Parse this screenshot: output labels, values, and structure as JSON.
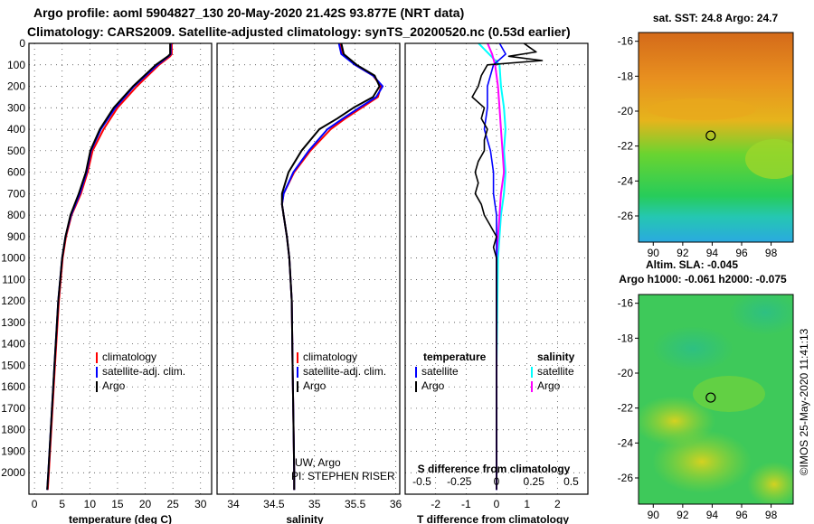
{
  "title_line1": "Argo profile: aoml 5904827_130 20-May-2020 21.42S 93.877E (NRT data)",
  "title_line2": "Climatology: CARS2009. Satellite-adjusted climatology: synTS_20200520.nc (0.53d earlier)",
  "credit": "©IMOS 25-May-2020 11:41:13",
  "colors": {
    "climatology": "#ff0000",
    "satellite": "#0000ff",
    "argo": "#000000",
    "satellite_s": "#00ffff",
    "argo_s": "#ff00ff"
  },
  "chart_data": [
    {
      "type": "line",
      "name": "temperature-profile",
      "xlabel": "temperature (deg C)",
      "ylabel": "depth",
      "xlim": [
        -1,
        32
      ],
      "ylim": [
        2100,
        0
      ],
      "x_ticks": [
        "0",
        "5",
        "10",
        "15",
        "20",
        "25",
        "30"
      ],
      "y_ticks": [
        "0",
        "100",
        "200",
        "300",
        "400",
        "500",
        "600",
        "700",
        "800",
        "900",
        "1000",
        "1100",
        "1200",
        "1300",
        "1400",
        "1500",
        "1600",
        "1700",
        "1800",
        "1900",
        "2000"
      ],
      "legend": [
        "climatology",
        "satellite-adj. clim.",
        "Argo"
      ],
      "series": [
        {
          "name": "climatology",
          "depth": [
            0,
            50,
            60,
            100,
            200,
            300,
            400,
            500,
            600,
            700,
            800,
            900,
            1000,
            1200,
            1500,
            2000,
            2080
          ],
          "values": [
            24.8,
            24.8,
            24.5,
            22.5,
            18.5,
            15.0,
            12.5,
            10.5,
            9.6,
            8.4,
            6.7,
            5.7,
            5.1,
            4.4,
            3.7,
            2.6,
            2.4
          ]
        },
        {
          "name": "satellite-adj. clim.",
          "depth": [
            0,
            50,
            60,
            100,
            200,
            300,
            400,
            500,
            600,
            700,
            800,
            900,
            1000,
            1200,
            1500,
            2000,
            2080
          ],
          "values": [
            24.6,
            24.6,
            24.2,
            22.2,
            18.0,
            14.6,
            12.0,
            10.2,
            9.4,
            8.2,
            6.6,
            5.6,
            5.0,
            4.3,
            3.6,
            2.5,
            2.3
          ]
        },
        {
          "name": "Argo",
          "depth": [
            0,
            50,
            60,
            100,
            200,
            300,
            400,
            500,
            600,
            700,
            800,
            900,
            1000,
            1200,
            1500,
            2000,
            2080
          ],
          "values": [
            24.5,
            24.5,
            24.1,
            21.9,
            17.8,
            14.3,
            11.8,
            10.1,
            9.3,
            8.0,
            6.5,
            5.6,
            5.0,
            4.3,
            3.6,
            2.5,
            2.3
          ]
        }
      ]
    },
    {
      "type": "line",
      "name": "salinity-profile",
      "xlabel": "salinity",
      "ylabel": "depth",
      "xlim": [
        33.8,
        36.05
      ],
      "ylim": [
        2100,
        0
      ],
      "x_ticks": [
        "34",
        "34.5",
        "35",
        "35.5",
        "36"
      ],
      "legend": [
        "climatology",
        "satellite-adj. clim.",
        "Argo"
      ],
      "annotations": [
        "UW, Argo",
        "PI: STEPHEN RISER"
      ],
      "series": [
        {
          "name": "climatology",
          "depth": [
            0,
            50,
            100,
            150,
            200,
            250,
            300,
            350,
            400,
            500,
            600,
            700,
            750,
            800,
            900,
            1000,
            1200,
            1500,
            2000,
            2080
          ],
          "values": [
            35.32,
            35.35,
            35.5,
            35.72,
            35.82,
            35.78,
            35.58,
            35.38,
            35.2,
            34.95,
            34.75,
            34.62,
            34.6,
            34.62,
            34.66,
            34.69,
            34.72,
            34.73,
            34.75,
            34.75
          ]
        },
        {
          "name": "satellite-adj. clim.",
          "depth": [
            0,
            50,
            100,
            150,
            200,
            250,
            300,
            350,
            400,
            500,
            600,
            700,
            750,
            800,
            900,
            1000,
            1200,
            1500,
            2000,
            2080
          ],
          "values": [
            35.3,
            35.33,
            35.5,
            35.72,
            35.84,
            35.76,
            35.55,
            35.35,
            35.16,
            34.93,
            34.74,
            34.62,
            34.6,
            34.62,
            34.66,
            34.69,
            34.72,
            34.73,
            34.75,
            34.75
          ]
        },
        {
          "name": "Argo",
          "depth": [
            0,
            50,
            100,
            150,
            200,
            250,
            300,
            350,
            400,
            500,
            600,
            700,
            750,
            800,
            900,
            1000,
            1200,
            1500,
            2000,
            2080
          ],
          "values": [
            35.33,
            35.36,
            35.52,
            35.74,
            35.8,
            35.72,
            35.48,
            35.28,
            35.06,
            34.84,
            34.68,
            34.6,
            34.6,
            34.62,
            34.66,
            34.69,
            34.72,
            34.73,
            34.75,
            34.75
          ]
        }
      ]
    },
    {
      "type": "line",
      "name": "difference-profile",
      "xlabel": "T difference from climatology",
      "top_xlabel": "S difference from climatology",
      "ylim": [
        2100,
        0
      ],
      "xlim": [
        -3,
        3
      ],
      "x_ticks": [
        "-2",
        "-1",
        "0",
        "1",
        "2"
      ],
      "top_ticks": [
        "-0.5",
        "-0.25",
        "0",
        "0.25",
        "0.5"
      ],
      "legend_titles": [
        "temperature",
        "salinity"
      ],
      "legend": [
        "satellite",
        "Argo",
        "satellite",
        "Argo"
      ],
      "series": [
        {
          "name": "T satellite",
          "depth": [
            0,
            50,
            100,
            200,
            300,
            400,
            500,
            600,
            700,
            800,
            900,
            1000,
            1500,
            2000,
            2080
          ],
          "values": [
            0.1,
            0.3,
            -0.1,
            -0.3,
            -0.3,
            -0.4,
            -0.2,
            -0.1,
            -0.1,
            0.0,
            0.0,
            0.0,
            0.0,
            0.0,
            0.0
          ]
        },
        {
          "name": "T Argo",
          "depth": [
            0,
            20,
            40,
            60,
            80,
            100,
            150,
            200,
            250,
            300,
            350,
            400,
            450,
            500,
            550,
            600,
            650,
            700,
            750,
            800,
            850,
            900,
            950,
            1000,
            1500,
            2000,
            2080
          ],
          "values": [
            0.9,
            1.1,
            1.3,
            0.4,
            1.5,
            -0.3,
            -0.5,
            -0.6,
            -0.8,
            -0.4,
            -0.5,
            -0.3,
            -0.4,
            -0.4,
            -0.6,
            -0.7,
            -0.6,
            -0.7,
            -0.5,
            -0.4,
            -0.2,
            0.0,
            -0.1,
            0.0,
            0.0,
            0.0,
            0.0
          ]
        },
        {
          "name": "S satellite",
          "depth": [
            0,
            50,
            100,
            200,
            300,
            400,
            500,
            600,
            700,
            800,
            900,
            1000,
            1500,
            2000,
            2080
          ],
          "values": [
            -0.12,
            -0.05,
            0.02,
            0.03,
            0.05,
            0.06,
            0.05,
            0.06,
            0.05,
            0.03,
            0.02,
            0.01,
            0.0,
            0.0,
            0.0
          ]
        },
        {
          "name": "S Argo",
          "depth": [
            0,
            50,
            100,
            200,
            300,
            400,
            500,
            600,
            700,
            800,
            900,
            1000,
            1500,
            2000,
            2080
          ],
          "values": [
            -0.06,
            -0.03,
            -0.01,
            0.01,
            0.02,
            0.03,
            0.04,
            0.05,
            0.03,
            0.02,
            0.01,
            0.0,
            0.0,
            0.0,
            0.0
          ]
        }
      ]
    },
    {
      "type": "heatmap",
      "name": "sst-map",
      "title": "sat. SST: 24.8 Argo: 24.7",
      "subtitle": "Altim. SLA: -0.045",
      "xlim": [
        89,
        99.5
      ],
      "ylim": [
        -27.5,
        -15.5
      ],
      "x_ticks": [
        "90",
        "92",
        "94",
        "96",
        "98"
      ],
      "y_ticks": [
        "-16",
        "-18",
        "-20",
        "-22",
        "-24",
        "-26"
      ],
      "marker": {
        "lon": 93.9,
        "lat": -21.4
      }
    },
    {
      "type": "heatmap",
      "name": "sla-map",
      "title": "Argo h1000: -0.061 h2000: -0.075",
      "xlim": [
        89,
        99.5
      ],
      "ylim": [
        -27.5,
        -15.5
      ],
      "x_ticks": [
        "90",
        "92",
        "94",
        "96",
        "98"
      ],
      "y_ticks": [
        "-16",
        "-18",
        "-20",
        "-22",
        "-24",
        "-26"
      ],
      "marker": {
        "lon": 93.9,
        "lat": -21.4
      }
    }
  ]
}
